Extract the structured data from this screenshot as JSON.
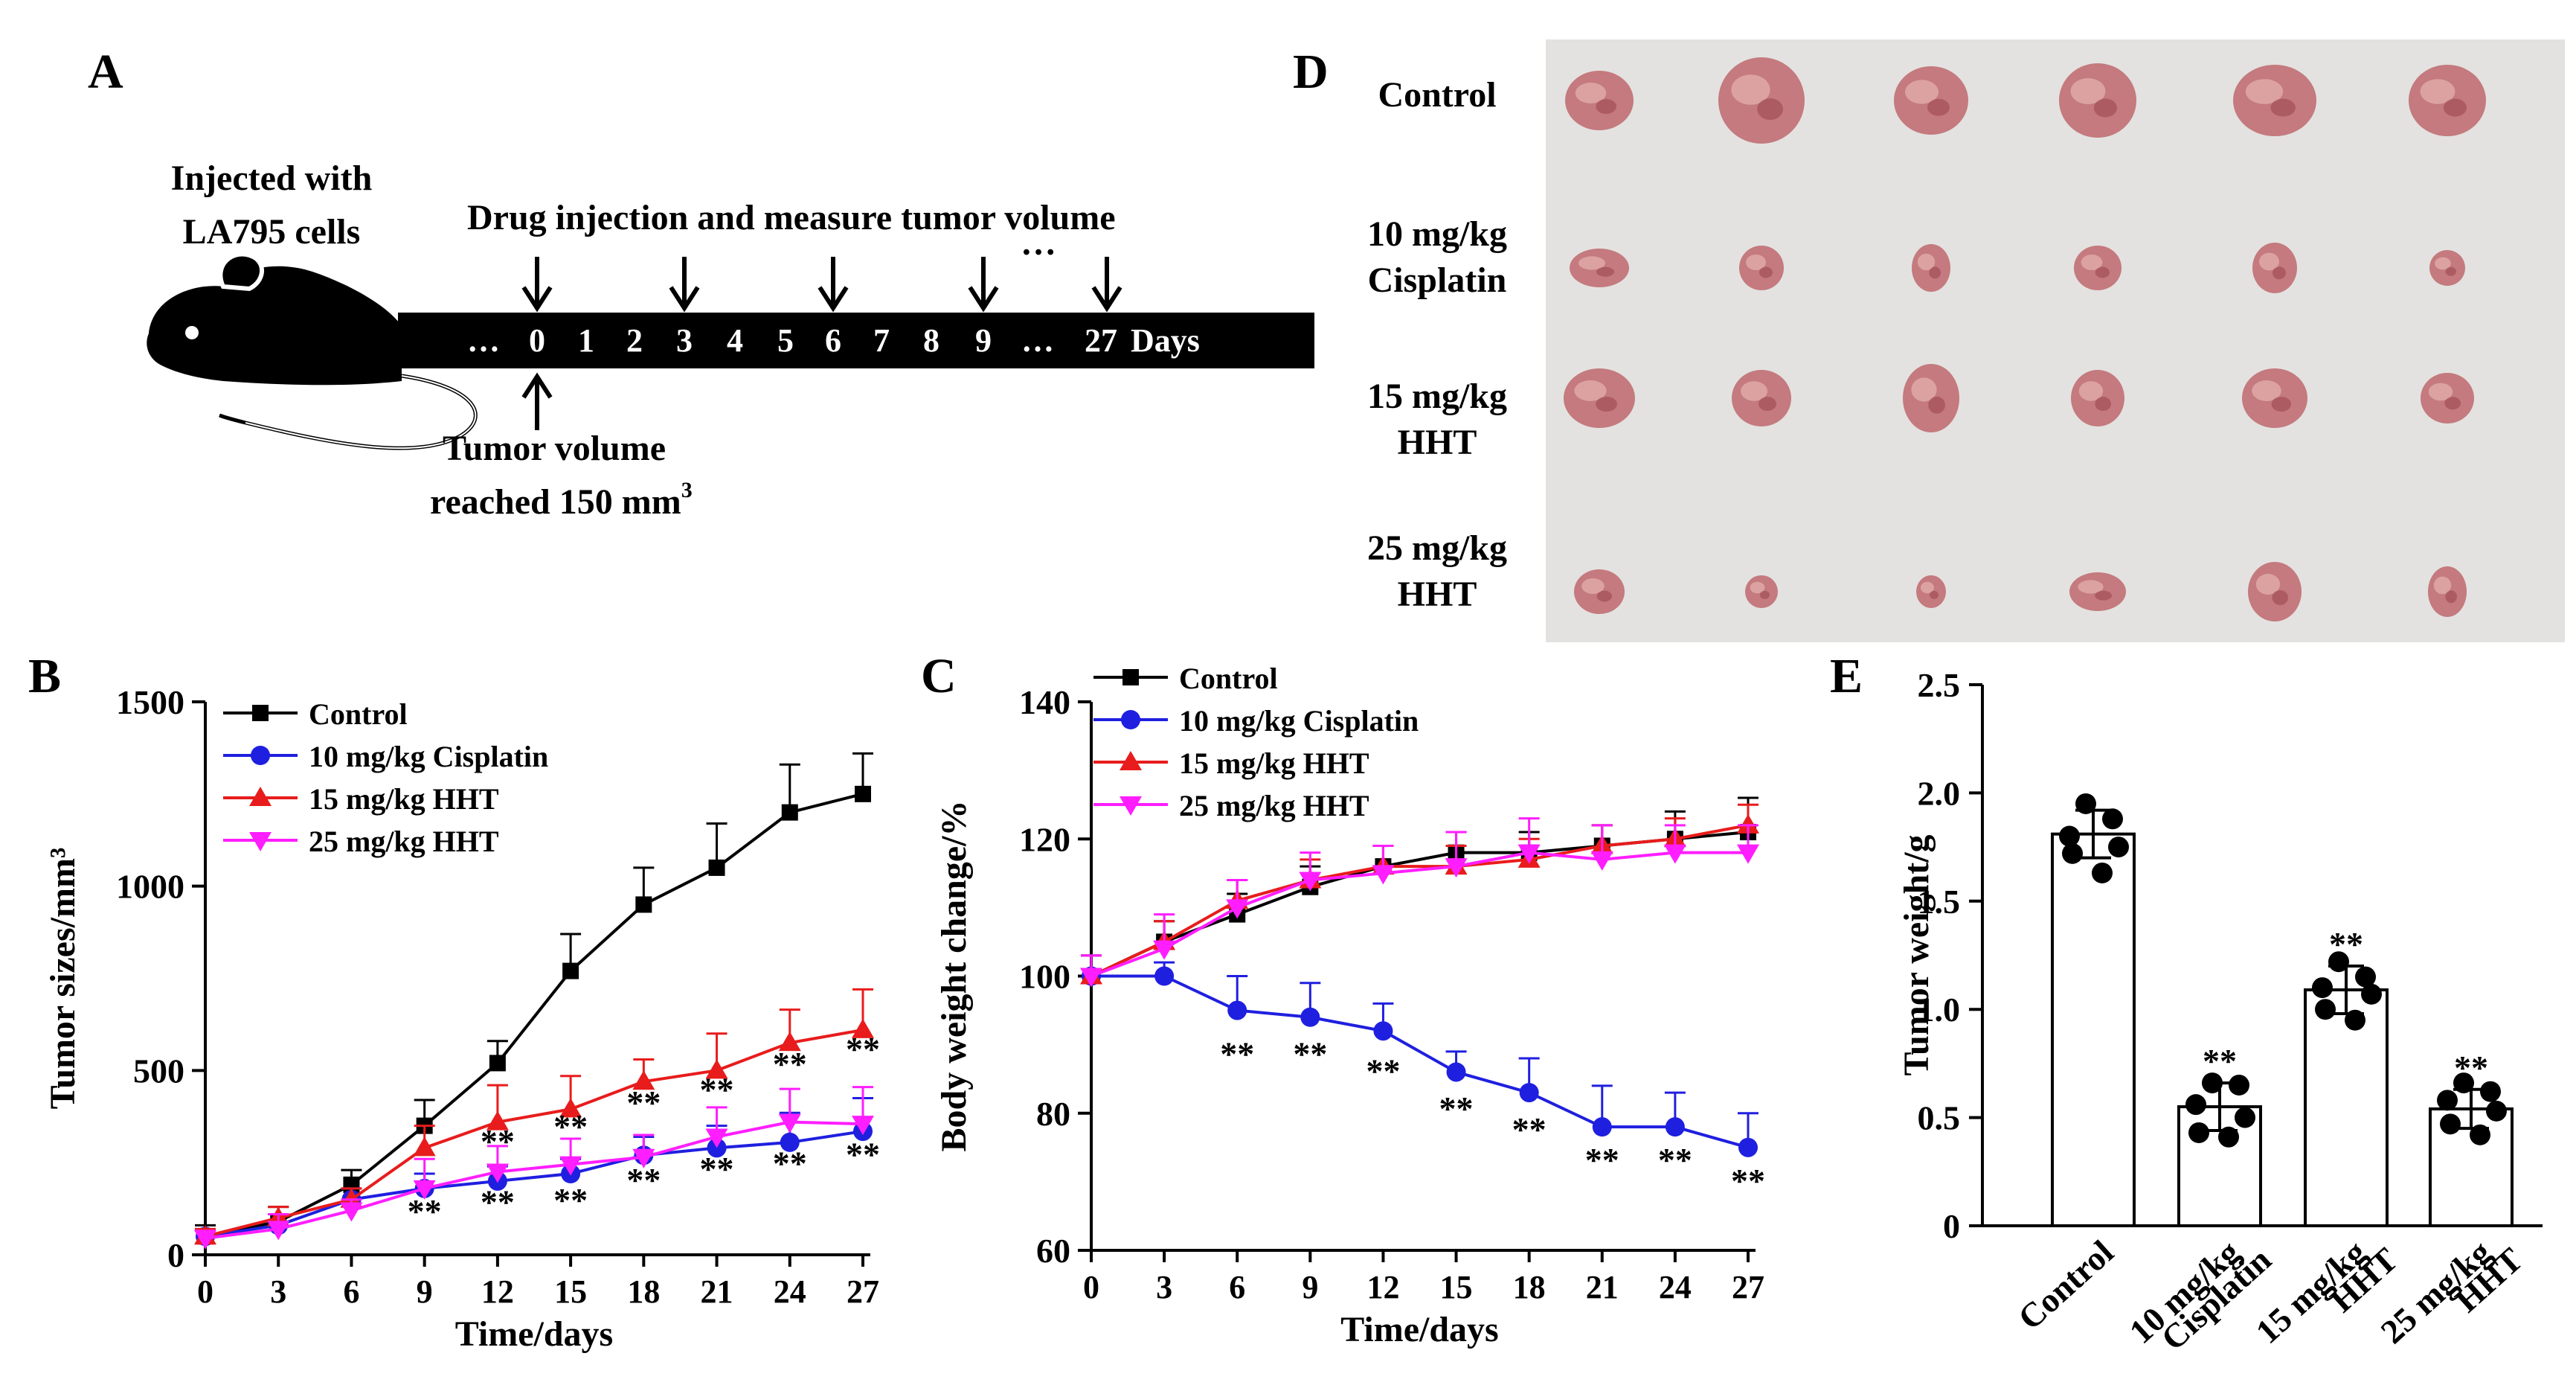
{
  "colors": {
    "control": "#000000",
    "cisplatin": "#1f1fe0",
    "hht15": "#e81c1c",
    "hht25": "#ff1eff",
    "photo_background": "#e3e2e0",
    "tumor": "#c47a7e"
  },
  "panel_a": {
    "letter": "A",
    "injected_line1": "Injected with",
    "injected_line2": "LA795 cells",
    "drug_label": "Drug injection  and  measure tumor  volume",
    "ellipsis_top": "…",
    "timeline_ticks": [
      "…",
      "0",
      "1",
      "2",
      "3",
      "4",
      "5",
      "6",
      "7",
      "8",
      "9",
      "…",
      "27"
    ],
    "days_label": "Days",
    "reached_line1": "Tumor  volume",
    "reached_line2": "reached 150 mm",
    "reached_sup": "3",
    "mouse_icon": "mouse-icon"
  },
  "panel_d": {
    "letter": "D",
    "rows": [
      {
        "line1": "Control",
        "line2": ""
      },
      {
        "line1": "10 mg/kg",
        "line2": "Cisplatin"
      },
      {
        "line1": "15 mg/kg",
        "line2": "HHT"
      },
      {
        "line1": "25 mg/kg",
        "line2": "HHT"
      }
    ]
  },
  "chart_data": [
    {
      "panel": "B",
      "type": "line",
      "xlabel": "Time/days",
      "ylabel": "Tumor  sizes/mm³",
      "x": [
        0,
        3,
        6,
        9,
        12,
        15,
        18,
        21,
        24,
        27
      ],
      "xticks": [
        "0",
        "3",
        "6",
        "9",
        "12",
        "15",
        "18",
        "21",
        "24",
        "27"
      ],
      "yticks": [
        "0",
        "500",
        "1000",
        "1500"
      ],
      "xlim": [
        0,
        27
      ],
      "ylim": [
        0,
        1500
      ],
      "legend_position": "top-left",
      "series": [
        {
          "name": "Control",
          "marker": "square",
          "values": [
            50,
            90,
            190,
            350,
            520,
            770,
            950,
            1050,
            1200,
            1250
          ],
          "err": [
            30,
            40,
            40,
            70,
            60,
            100,
            100,
            120,
            130,
            110
          ]
        },
        {
          "name": "10 mg/kg Cisplatin",
          "marker": "circle",
          "values": [
            50,
            80,
            150,
            180,
            200,
            220,
            270,
            290,
            305,
            335
          ],
          "err": [
            20,
            30,
            30,
            40,
            40,
            40,
            50,
            60,
            80,
            90
          ]
        },
        {
          "name": "15 mg/kg HHT",
          "marker": "triangle-up",
          "values": [
            50,
            100,
            150,
            290,
            360,
            395,
            470,
            500,
            575,
            610
          ],
          "err": [
            20,
            30,
            30,
            60,
            100,
            90,
            60,
            100,
            90,
            110
          ]
        },
        {
          "name": "25 mg/kg HHT",
          "marker": "triangle-down",
          "values": [
            45,
            70,
            120,
            180,
            225,
            245,
            265,
            320,
            360,
            355
          ],
          "err": [
            20,
            40,
            30,
            80,
            70,
            70,
            60,
            80,
            90,
            100
          ]
        }
      ],
      "annotations": [
        {
          "text": "**",
          "x": 9,
          "y": 115
        },
        {
          "text": "**",
          "x": 12,
          "y": 140
        },
        {
          "text": "**",
          "x": 15,
          "y": 145
        },
        {
          "text": "**",
          "x": 18,
          "y": 200
        },
        {
          "text": "**",
          "x": 21,
          "y": 230
        },
        {
          "text": "**",
          "x": 24,
          "y": 245
        },
        {
          "text": "**",
          "x": 27,
          "y": 270
        },
        {
          "text": "**",
          "x": 12,
          "y": 305
        },
        {
          "text": "**",
          "x": 15,
          "y": 345
        },
        {
          "text": "**",
          "x": 18,
          "y": 410
        },
        {
          "text": "**",
          "x": 21,
          "y": 445
        },
        {
          "text": "**",
          "x": 24,
          "y": 515
        },
        {
          "text": "**",
          "x": 27,
          "y": 555
        }
      ]
    },
    {
      "panel": "C",
      "type": "line",
      "xlabel": "Time/days",
      "ylabel": "Body weight  change/%",
      "x": [
        0,
        3,
        6,
        9,
        12,
        15,
        18,
        21,
        24,
        27
      ],
      "xticks": [
        "0",
        "3",
        "6",
        "9",
        "12",
        "15",
        "18",
        "21",
        "24",
        "27"
      ],
      "yticks": [
        "60",
        "80",
        "100",
        "120",
        "140"
      ],
      "xlim": [
        0,
        27
      ],
      "ylim": [
        60,
        140
      ],
      "legend_position": "top-left",
      "series": [
        {
          "name": "Control",
          "marker": "square",
          "values": [
            100,
            105,
            109,
            113,
            116,
            118,
            118,
            119,
            120,
            121
          ],
          "err": [
            3,
            3,
            3,
            3,
            3,
            3,
            3,
            3,
            4,
            5
          ]
        },
        {
          "name": "10 mg/kg Cisplatin",
          "marker": "circle",
          "values": [
            100,
            100,
            95,
            94,
            92,
            86,
            83,
            78,
            78,
            75
          ],
          "err": [
            3,
            2,
            5,
            5,
            4,
            3,
            5,
            6,
            5,
            5
          ]
        },
        {
          "name": "15 mg/kg HHT",
          "marker": "triangle-up",
          "values": [
            100,
            105,
            111,
            114,
            116,
            116,
            117,
            119,
            120,
            122
          ],
          "err": [
            3,
            3,
            3,
            3,
            3,
            3,
            3,
            3,
            3,
            3
          ]
        },
        {
          "name": "25 mg/kg HHT",
          "marker": "triangle-down",
          "values": [
            100,
            104,
            110,
            114,
            115,
            116,
            118,
            117,
            118,
            118
          ],
          "err": [
            3,
            5,
            4,
            4,
            4,
            5,
            5,
            5,
            4,
            4
          ]
        }
      ],
      "annotations": [
        {
          "text": "**",
          "x": 6,
          "y": 88.5
        },
        {
          "text": "**",
          "x": 9,
          "y": 88.5
        },
        {
          "text": "**",
          "x": 12,
          "y": 86
        },
        {
          "text": "**",
          "x": 15,
          "y": 80.5
        },
        {
          "text": "**",
          "x": 18,
          "y": 77.5
        },
        {
          "text": "**",
          "x": 21,
          "y": 73
        },
        {
          "text": "**",
          "x": 24,
          "y": 73
        },
        {
          "text": "**",
          "x": 27,
          "y": 70
        }
      ]
    },
    {
      "panel": "E",
      "type": "bar",
      "ylabel": "Tumor  weight/g",
      "categories": [
        "Control",
        "10 mg/kg Cisplatin",
        "15 mg/kg HHT",
        "25 mg/kg HHT"
      ],
      "category_lines": [
        [
          "Control"
        ],
        [
          "10 mg/kg",
          "Cisplatin"
        ],
        [
          "15 mg/kg",
          "HHT"
        ],
        [
          "25 mg/kg",
          "HHT"
        ]
      ],
      "values": [
        1.81,
        0.55,
        1.09,
        0.54
      ],
      "err": [
        0.11,
        0.11,
        0.11,
        0.09
      ],
      "points": [
        [
          1.95,
          1.88,
          1.8,
          1.75,
          1.72,
          1.63
        ],
        [
          0.66,
          0.65,
          0.56,
          0.5,
          0.43,
          0.41
        ],
        [
          1.22,
          1.15,
          1.1,
          1.07,
          1.0,
          0.95
        ],
        [
          0.66,
          0.62,
          0.58,
          0.53,
          0.47,
          0.42
        ]
      ],
      "annotations": [
        "",
        "**",
        "**",
        "**"
      ],
      "yticks": [
        "0",
        "0.5",
        "1.0",
        "1.5",
        "2.0",
        "2.5"
      ],
      "ylim": [
        0,
        2.5
      ],
      "grid": false
    }
  ],
  "panel_letters": {
    "b": "B",
    "c": "C",
    "e": "E"
  }
}
